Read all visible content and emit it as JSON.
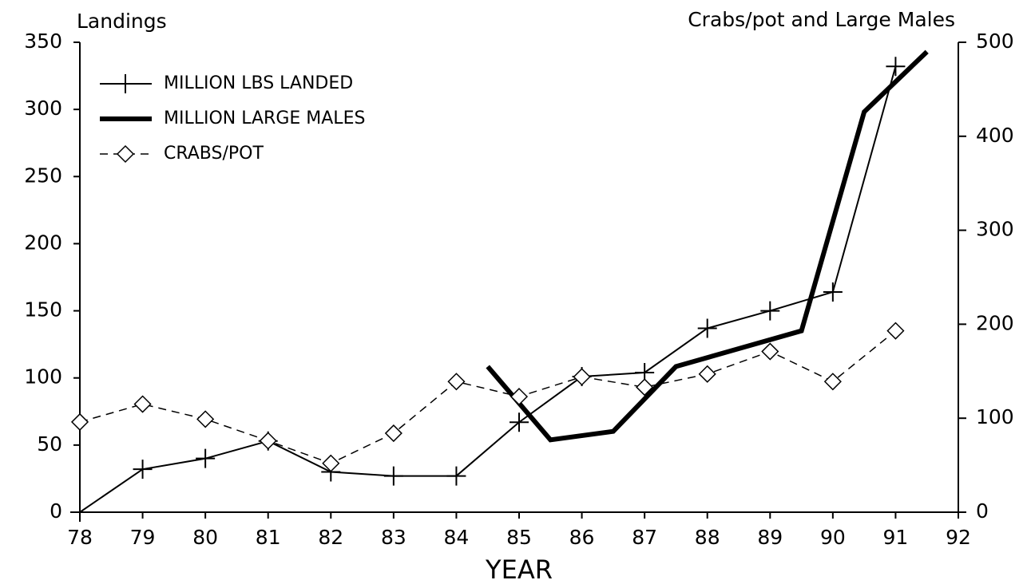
{
  "chart_data": {
    "type": "line",
    "title": "Landings",
    "subtitle": "Crabs/pot and Large Males",
    "x_label": "YEAR",
    "xlim": [
      78,
      92
    ],
    "xticks": [
      78,
      79,
      80,
      81,
      82,
      83,
      84,
      85,
      86,
      87,
      88,
      89,
      90,
      91,
      92
    ],
    "ylim": [
      0,
      350
    ],
    "yticks": [
      0,
      50,
      100,
      150,
      200,
      250,
      300,
      350
    ],
    "y2lim": [
      0,
      500
    ],
    "y2ticks": [
      0,
      100,
      200,
      300,
      400,
      500
    ],
    "grid": false,
    "legend": "upper left",
    "series": [
      {
        "name": "MILLION LBS LANDED",
        "color": "#000000",
        "marker": "plus",
        "dashed": false,
        "line_width": 2,
        "x": [
          78,
          79,
          80,
          81,
          82,
          83,
          84,
          85,
          86,
          87,
          88,
          89,
          90,
          91
        ],
        "values": [
          0,
          32,
          40,
          53,
          30,
          27,
          27,
          67,
          101,
          104,
          137,
          150,
          164,
          332
        ]
      },
      {
        "name": "MILLION LARGE MALES",
        "color": "#000000",
        "marker": "none",
        "dashed": false,
        "line_width": 6,
        "axis": "y2",
        "x": [
          84.5,
          85.5,
          86.5,
          87.5,
          88.5,
          89.5,
          90.5,
          91.5
        ],
        "values": [
          155,
          77,
          86,
          155,
          174,
          193,
          426,
          490
        ]
      },
      {
        "name": "CRABS/POT",
        "color": "#000000",
        "marker": "diamond",
        "dashed": true,
        "line_width": 1.5,
        "axis": "y2",
        "x": [
          78,
          79,
          80,
          81,
          82,
          83,
          84,
          85,
          86,
          87,
          88,
          89,
          90,
          91
        ],
        "values": [
          96,
          115,
          99,
          76,
          52,
          84,
          139,
          123,
          144,
          133,
          147,
          171,
          139,
          193
        ]
      }
    ]
  }
}
